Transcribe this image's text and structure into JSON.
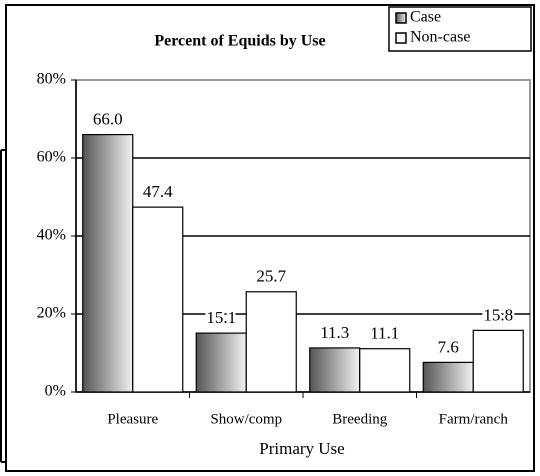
{
  "chart_data": {
    "type": "bar",
    "title": "Percent of Equids by Use",
    "x_label": "Primary Use",
    "categories": [
      "Pleasure",
      "Show/comp",
      "Breeding",
      "Farm/ranch"
    ],
    "series": [
      {
        "name": "Case",
        "color": "gradient-gray",
        "values": [
          66.0,
          15.1,
          11.3,
          7.6
        ],
        "value_labels": [
          "66.0",
          "15.1",
          "11.3",
          "7.6"
        ]
      },
      {
        "name": "Non-case",
        "color": "#ffffff",
        "values": [
          47.4,
          25.7,
          11.1,
          15.8
        ],
        "value_labels": [
          "47.4",
          "25.7",
          "11.1",
          "15.8"
        ]
      }
    ],
    "ylim": [
      0,
      80
    ],
    "yticks": [
      {
        "value": 0,
        "label": "0%"
      },
      {
        "value": 20,
        "label": "20%"
      },
      {
        "value": 40,
        "label": "40%"
      },
      {
        "value": 60,
        "label": "60%"
      },
      {
        "value": 80,
        "label": "80%"
      }
    ],
    "grid": true,
    "legend": "top-right"
  }
}
